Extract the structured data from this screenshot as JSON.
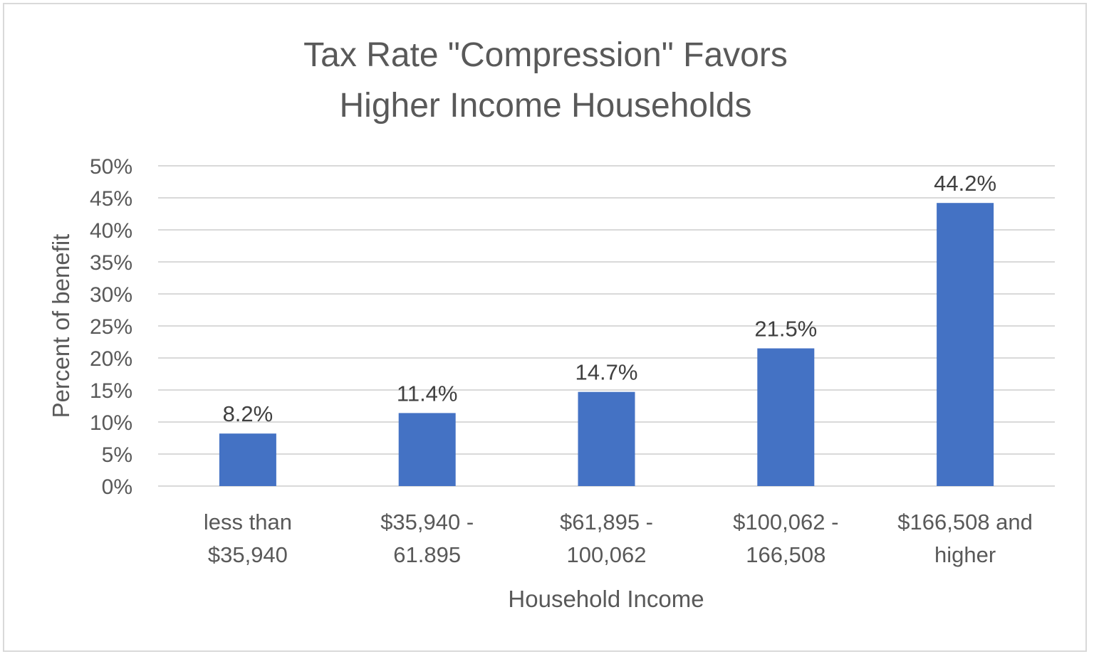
{
  "chart_data": {
    "type": "bar",
    "title": [
      "Tax Rate \"Compression\" Favors",
      "Higher Income Households"
    ],
    "xlabel": "Household Income",
    "ylabel": "Percent of benefit",
    "categories": [
      [
        "less than",
        "$35,940"
      ],
      [
        "$35,940 -",
        "61.895"
      ],
      [
        "$61,895 -",
        "100,062"
      ],
      [
        "$100,062 -",
        "166,508"
      ],
      [
        "$166,508 and",
        "higher"
      ]
    ],
    "values": [
      8.2,
      11.4,
      14.7,
      21.5,
      44.2
    ],
    "data_labels": [
      "8.2%",
      "11.4%",
      "14.7%",
      "21.5%",
      "44.2%"
    ],
    "ylim": [
      0,
      50
    ],
    "yticks": [
      "0%",
      "5%",
      "10%",
      "15%",
      "20%",
      "25%",
      "30%",
      "35%",
      "40%",
      "45%",
      "50%"
    ],
    "grid": true,
    "legend": "none",
    "bar_color": "#4472c4",
    "grid_color": "#d9d9d9"
  }
}
